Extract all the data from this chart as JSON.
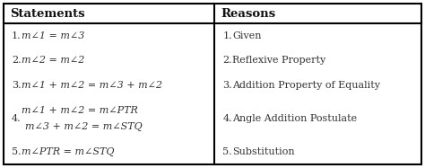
{
  "bg_color": "#ffffff",
  "border_color": "#000000",
  "header_line_color": "#000000",
  "col_split": 0.505,
  "headers": [
    "Statements",
    "Reasons"
  ],
  "header_fontsize": 9.5,
  "row_fontsize": 8.0,
  "statements": [
    [
      "1.",
      "m∠1 = m∠3"
    ],
    [
      "2.",
      "m∠2 = m∠2"
    ],
    [
      "3.",
      "m∠1 + m∠2 = m∠3 + m∠2"
    ],
    [
      "4.",
      "m∠1 + m∠2 = m∠PTR",
      "m∠3 + m∠2 = m∠STQ"
    ],
    [
      "5.",
      "m∠PTR = m∠STQ"
    ]
  ],
  "reasons": [
    [
      "1.",
      "Given"
    ],
    [
      "2.",
      "Reflexive Property"
    ],
    [
      "3.",
      "Addition Property of Equality"
    ],
    [
      "4.",
      "Angle Addition Postulate"
    ],
    [
      "5.",
      "Substitution"
    ]
  ],
  "figsize": [
    4.74,
    1.87
  ],
  "dpi": 100
}
